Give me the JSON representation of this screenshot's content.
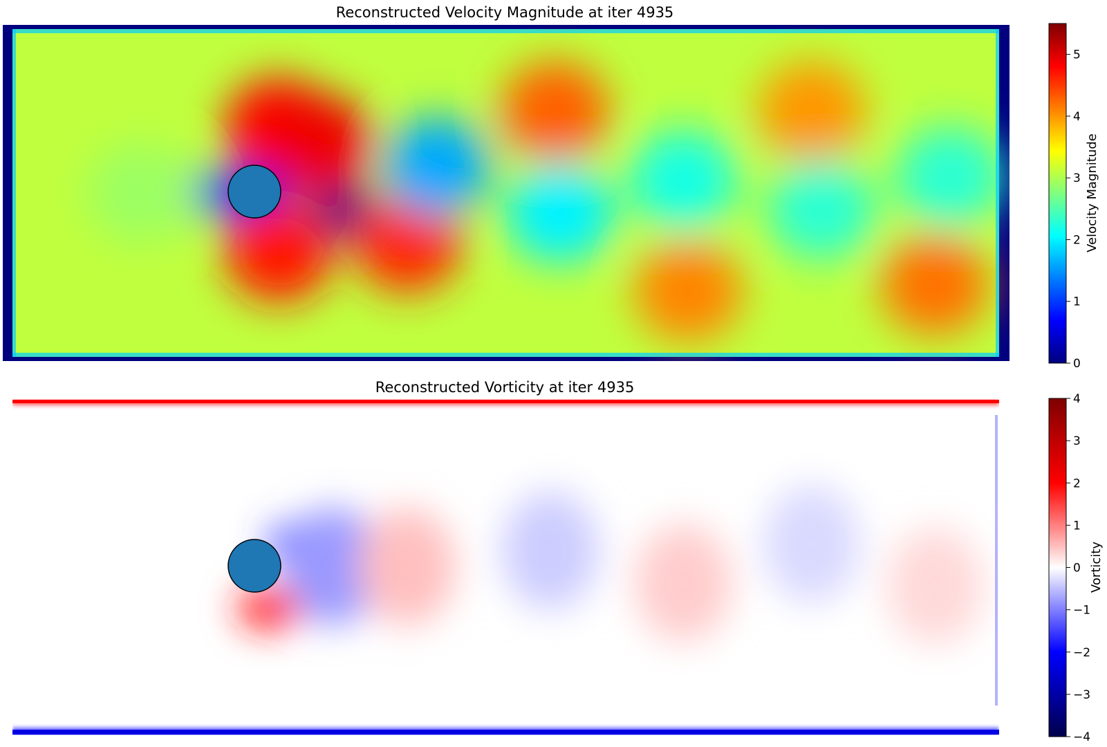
{
  "chart_data": [
    {
      "type": "heatmap",
      "title": "Reconstructed Velocity Magnitude at iter 4935",
      "colorbar": {
        "label": "Velocity Magnitude",
        "colormap": "jet",
        "range": [
          0,
          5.5
        ],
        "ticks": [
          "0",
          "1",
          "2",
          "3",
          "4",
          "5"
        ],
        "tick_values": [
          0,
          1,
          2,
          3,
          4,
          5
        ]
      },
      "colormap_stops": [
        "#00007f",
        "#0000ff",
        "#007fff",
        "#00ffff",
        "#7fff7f",
        "#ffff00",
        "#ff7f00",
        "#ff0000",
        "#7f0000"
      ],
      "background_value": 3.1,
      "wall_value": 0.0,
      "cylinder_color": "#1f77b4",
      "features": [
        {
          "x": 0.13,
          "y": 0.5,
          "value": 2.9
        },
        {
          "x": 0.215,
          "y": 0.5,
          "value": 0.8
        },
        {
          "x": 0.255,
          "y": 0.5,
          "value": 0.6
        },
        {
          "x": 0.3,
          "y": 0.42,
          "value": 0.2
        },
        {
          "x": 0.335,
          "y": 0.55,
          "value": 0.1
        },
        {
          "x": 0.27,
          "y": 0.3,
          "value": 4.8
        },
        {
          "x": 0.31,
          "y": 0.35,
          "value": 4.9
        },
        {
          "x": 0.27,
          "y": 0.68,
          "value": 4.7
        },
        {
          "x": 0.4,
          "y": 0.65,
          "value": 4.6
        },
        {
          "x": 0.43,
          "y": 0.42,
          "value": 1.6
        },
        {
          "x": 0.55,
          "y": 0.25,
          "value": 4.3
        },
        {
          "x": 0.555,
          "y": 0.56,
          "value": 2.0
        },
        {
          "x": 0.68,
          "y": 0.46,
          "value": 2.2
        },
        {
          "x": 0.685,
          "y": 0.8,
          "value": 4.1
        },
        {
          "x": 0.81,
          "y": 0.25,
          "value": 4.0
        },
        {
          "x": 0.82,
          "y": 0.55,
          "value": 2.3
        },
        {
          "x": 0.95,
          "y": 0.45,
          "value": 2.3
        },
        {
          "x": 0.935,
          "y": 0.78,
          "value": 4.2
        }
      ]
    },
    {
      "type": "heatmap",
      "title": "Reconstructed Vorticity at iter 4935",
      "colorbar": {
        "label": "Vorticity",
        "colormap": "seismic",
        "range": [
          -4,
          4
        ],
        "ticks": [
          "4",
          "3",
          "2",
          "1",
          "0",
          "−1",
          "−2",
          "−3",
          "−4"
        ],
        "tick_values": [
          4,
          3,
          2,
          1,
          0,
          -1,
          -2,
          -3,
          -4
        ]
      },
      "colormap_stops": [
        "#00004c",
        "#0000ff",
        "#ffffff",
        "#ff0000",
        "#7f0000"
      ],
      "background_value": 0,
      "top_wall_value": 2.0,
      "bottom_wall_value": -2.3,
      "cylinder_color": "#1f77b4",
      "features": [
        {
          "x": 0.29,
          "y": 0.43,
          "value": -1.5
        },
        {
          "x": 0.325,
          "y": 0.5,
          "value": -0.8
        },
        {
          "x": 0.26,
          "y": 0.63,
          "value": 1.8
        },
        {
          "x": 0.4,
          "y": 0.5,
          "value": 0.5
        },
        {
          "x": 0.545,
          "y": 0.45,
          "value": -0.4
        },
        {
          "x": 0.68,
          "y": 0.55,
          "value": 0.4
        },
        {
          "x": 0.81,
          "y": 0.43,
          "value": -0.3
        },
        {
          "x": 0.935,
          "y": 0.56,
          "value": 0.3
        }
      ]
    }
  ]
}
